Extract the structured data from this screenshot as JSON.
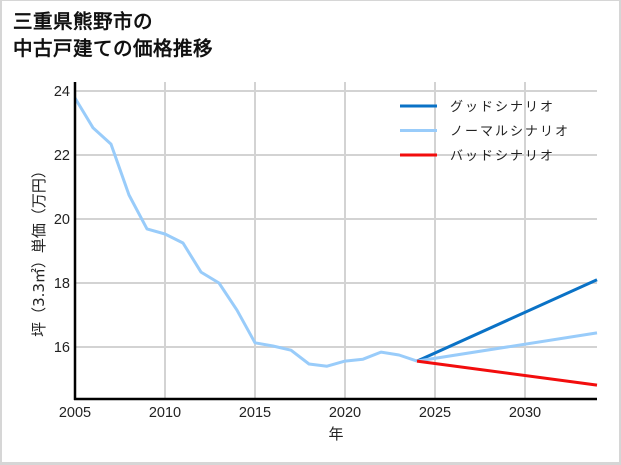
{
  "title": {
    "line1": "三重県熊野市の",
    "line2": "中古戸建ての価格推移"
  },
  "colors": {
    "good": "#0a72c6",
    "normal": "#99ccfa",
    "bad": "#f20d0d",
    "grid": "#d3d3d3",
    "axis": "#000000",
    "frame": "#d6d6d6"
  },
  "chart_data": {
    "type": "line",
    "title": "三重県熊野市の 中古戸建ての価格推移",
    "xlabel": "年",
    "ylabel": "坪（3.3㎡）単価（万円）",
    "xlim": [
      2005,
      2034
    ],
    "ylim": [
      14.375,
      24.28
    ],
    "xticks": [
      2005,
      2010,
      2015,
      2020,
      2025,
      2030
    ],
    "yticks": [
      16,
      18,
      20,
      22,
      24
    ],
    "grid": true,
    "legend_position": "upper right",
    "historical": {
      "name": "ノーマルシナリオ",
      "x": [
        2005,
        2006,
        2007,
        2008,
        2009,
        2010,
        2011,
        2012,
        2013,
        2014,
        2015,
        2016,
        2017,
        2018,
        2019,
        2020,
        2021,
        2022,
        2023,
        2024
      ],
      "values": [
        23.78,
        22.85,
        22.34,
        20.75,
        19.69,
        19.53,
        19.25,
        18.34,
        18.0,
        17.15,
        16.13,
        16.03,
        15.9,
        15.47,
        15.4,
        15.56,
        15.62,
        15.84,
        15.75,
        15.56
      ]
    },
    "series": [
      {
        "name": "グッドシナリオ",
        "key": "good",
        "x": [
          2024,
          2034
        ],
        "values": [
          15.56,
          18.1
        ]
      },
      {
        "name": "ノーマルシナリオ",
        "key": "normal",
        "x": [
          2024,
          2034
        ],
        "values": [
          15.56,
          16.44
        ]
      },
      {
        "name": "バッドシナリオ",
        "key": "bad",
        "x": [
          2024,
          2034
        ],
        "values": [
          15.56,
          14.81
        ]
      }
    ]
  },
  "legend": {
    "items": [
      {
        "label": "グッドシナリオ",
        "key": "good"
      },
      {
        "label": "ノーマルシナリオ",
        "key": "normal"
      },
      {
        "label": "バッドシナリオ",
        "key": "bad"
      }
    ]
  }
}
